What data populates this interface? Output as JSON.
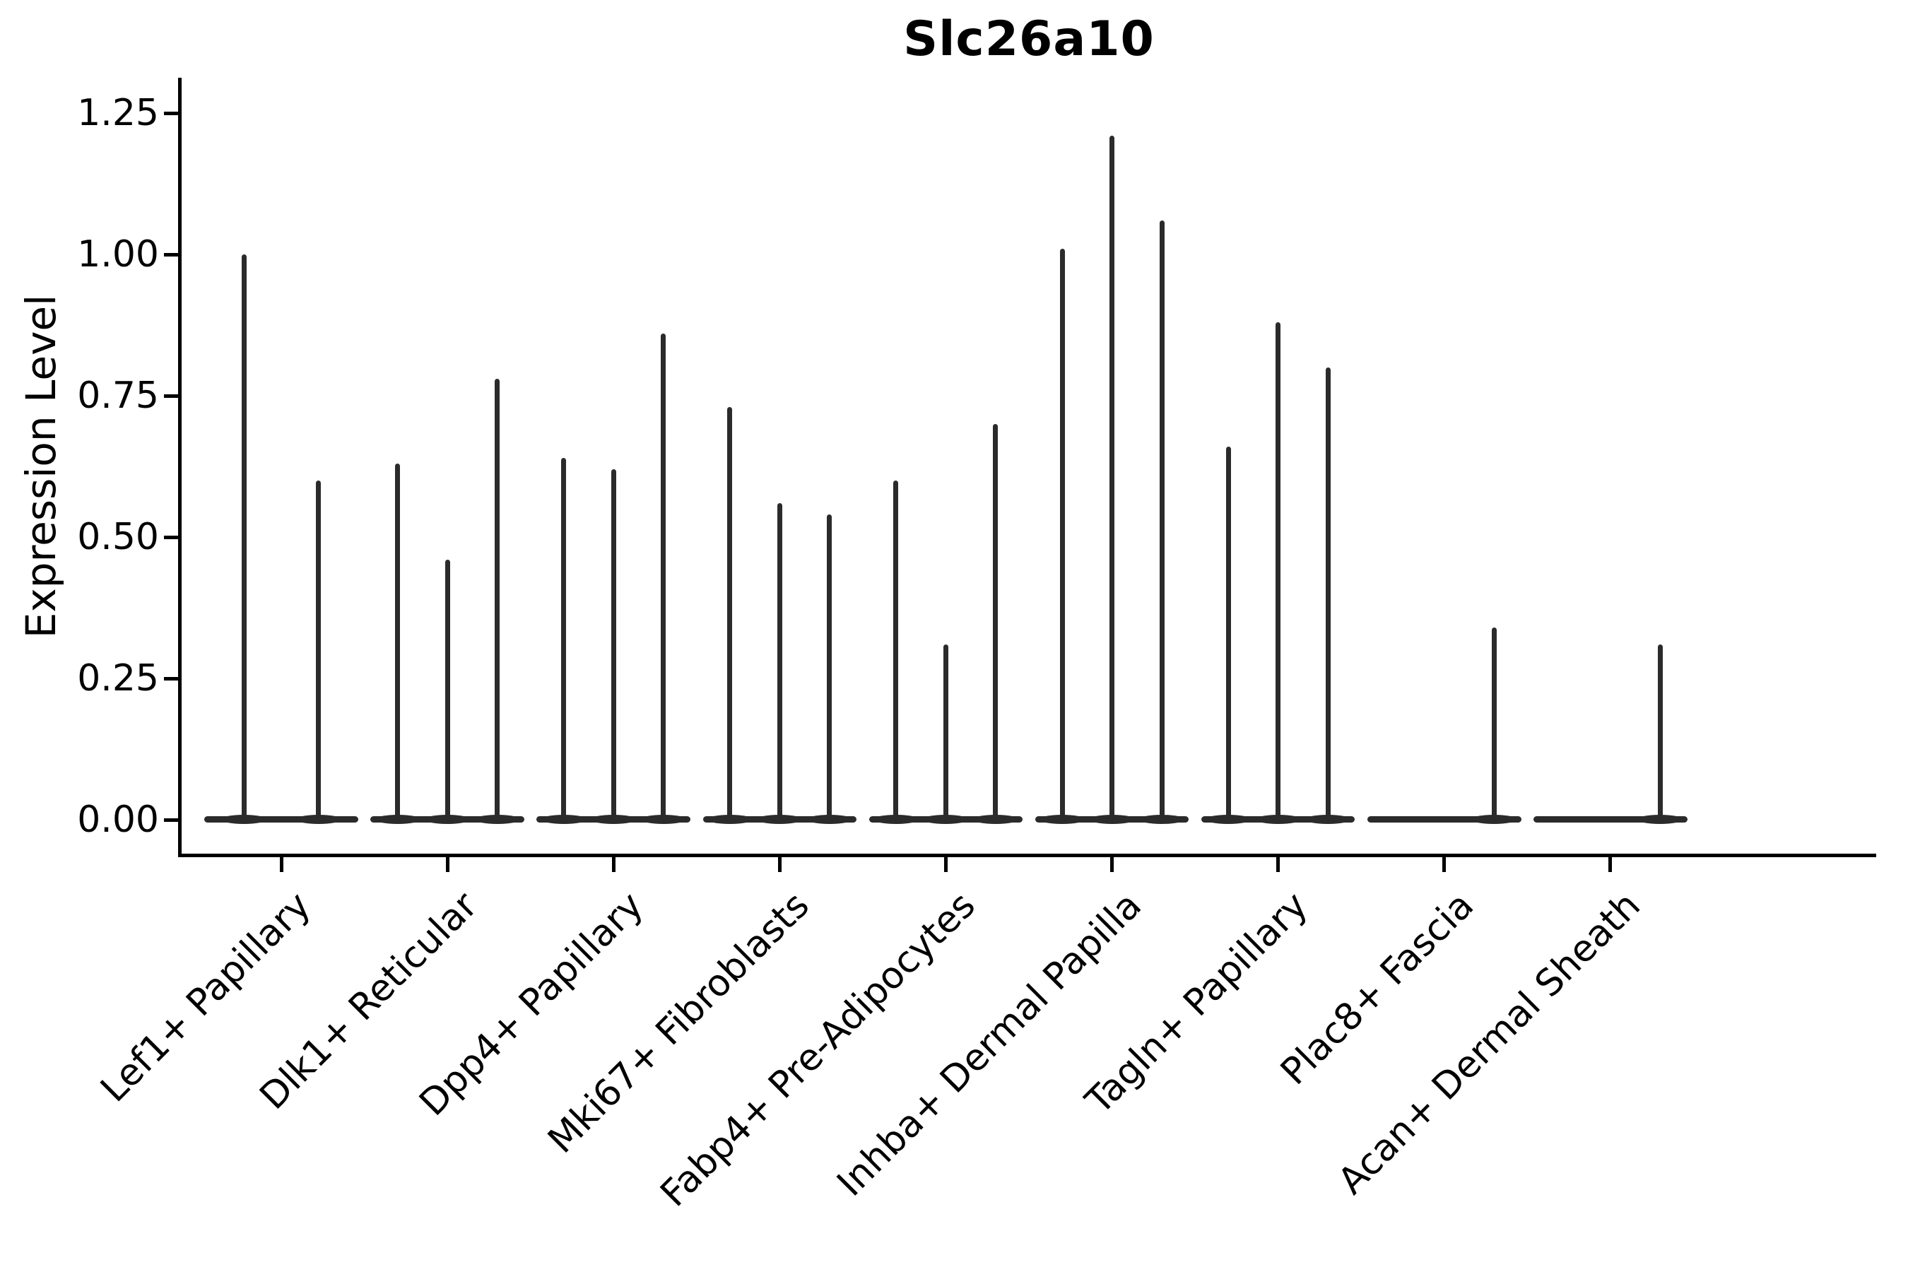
{
  "title": "Slc26a10",
  "axes": {
    "ylabel": "Expression Level",
    "xlabel": ""
  },
  "colors": {
    "violin_line": "#2b2b2b",
    "axis": "#000000",
    "background": "#ffffff"
  },
  "chart_data": {
    "type": "violin",
    "title": "Slc26a10",
    "xlabel": "",
    "ylabel": "Expression Level",
    "ylim": [
      -0.0625,
      1.3125
    ],
    "yticks": [
      0,
      0.25,
      0.5,
      0.75,
      1.0,
      1.25
    ],
    "ytick_labels": [
      "0.00",
      "0.25",
      "0.50",
      "0.75",
      "1.00",
      "1.25"
    ],
    "grid": false,
    "legend": "none",
    "description": "Single-cell expression violin plot; each cluster holds up to 3 very thin spike-like violins (max expression spikes) over a flat zero-expression base.",
    "categories": [
      {
        "label": "Lef1+ Papillary",
        "n_slots": 2,
        "spikes": [
          {
            "slot": 0,
            "max": 1.0
          },
          {
            "slot": 1,
            "max": 0.6
          }
        ]
      },
      {
        "label": "Dlk1+ Reticular",
        "n_slots": 3,
        "spikes": [
          {
            "slot": 0,
            "max": 0.63
          },
          {
            "slot": 1,
            "max": 0.46
          },
          {
            "slot": 2,
            "max": 0.78
          }
        ]
      },
      {
        "label": "Dpp4+ Papillary",
        "n_slots": 3,
        "spikes": [
          {
            "slot": 0,
            "max": 0.64
          },
          {
            "slot": 1,
            "max": 0.62
          },
          {
            "slot": 2,
            "max": 0.86
          }
        ]
      },
      {
        "label": "Mki67+ Fibroblasts",
        "n_slots": 3,
        "spikes": [
          {
            "slot": 0,
            "max": 0.73
          },
          {
            "slot": 1,
            "max": 0.56
          },
          {
            "slot": 2,
            "max": 0.54
          }
        ]
      },
      {
        "label": "Fabp4+ Pre-Adipocytes",
        "n_slots": 3,
        "spikes": [
          {
            "slot": 0,
            "max": 0.6
          },
          {
            "slot": 1,
            "max": 0.31
          },
          {
            "slot": 2,
            "max": 0.7
          }
        ]
      },
      {
        "label": "Inhba+ Dermal Papilla",
        "n_slots": 3,
        "spikes": [
          {
            "slot": 0,
            "max": 1.01
          },
          {
            "slot": 1,
            "max": 1.21
          },
          {
            "slot": 2,
            "max": 1.06
          }
        ]
      },
      {
        "label": "Tagln+ Papillary",
        "n_slots": 3,
        "spikes": [
          {
            "slot": 0,
            "max": 0.66
          },
          {
            "slot": 1,
            "max": 0.88
          },
          {
            "slot": 2,
            "max": 0.8
          }
        ]
      },
      {
        "label": "Plac8+ Fascia",
        "n_slots": 3,
        "spikes": [
          {
            "slot": 2,
            "max": 0.34
          }
        ]
      },
      {
        "label": "Acan+ Dermal Sheath",
        "n_slots": 3,
        "spikes": [
          {
            "slot": 2,
            "max": 0.31
          }
        ]
      }
    ]
  }
}
